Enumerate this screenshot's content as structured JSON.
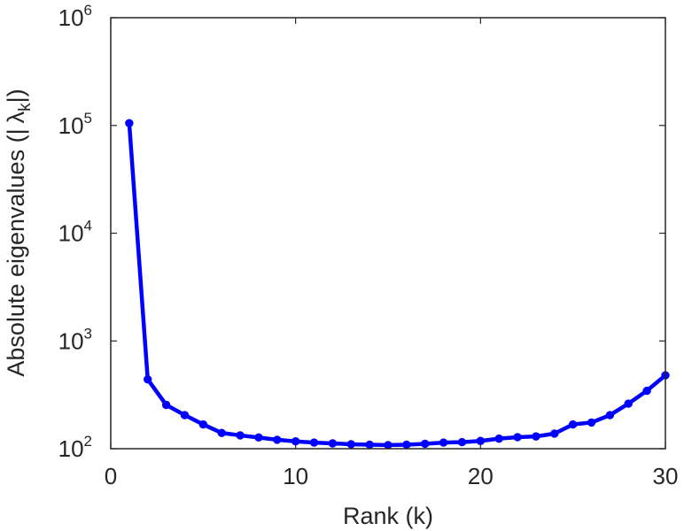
{
  "chart_data": {
    "type": "line",
    "xlabel": "Rank (k)",
    "ylabel": "Absolute eigenvalues (|λ_k|)",
    "ylabel_parts": {
      "prefix": "Absolute eigenvalues (|",
      "symbol": "λ",
      "subscript": "k",
      "suffix": "|)"
    },
    "x_scale": "linear",
    "y_scale": "log",
    "xlim": [
      0,
      30
    ],
    "ylim": [
      100,
      1000000
    ],
    "xticks": [
      0,
      10,
      20,
      30
    ],
    "yticks": [
      {
        "value": 100,
        "base": "10",
        "exp": "2"
      },
      {
        "value": 1000,
        "base": "10",
        "exp": "3"
      },
      {
        "value": 10000,
        "base": "10",
        "exp": "4"
      },
      {
        "value": 100000,
        "base": "10",
        "exp": "5"
      },
      {
        "value": 1000000,
        "base": "10",
        "exp": "6"
      }
    ],
    "grid": false,
    "series": [
      {
        "color": "#0000ff",
        "marker": "circle",
        "x": [
          1,
          2,
          3,
          4,
          5,
          6,
          7,
          8,
          9,
          10,
          11,
          12,
          13,
          14,
          15,
          16,
          17,
          18,
          19,
          20,
          21,
          22,
          23,
          24,
          25,
          26,
          27,
          28,
          29,
          30
        ],
        "y": [
          105000,
          440,
          255,
          205,
          168,
          140,
          133,
          127,
          121,
          117,
          114,
          112,
          110,
          109,
          108,
          109,
          111,
          114,
          115,
          118,
          124,
          128,
          130,
          138,
          168,
          175,
          205,
          262,
          345,
          480
        ]
      }
    ]
  }
}
